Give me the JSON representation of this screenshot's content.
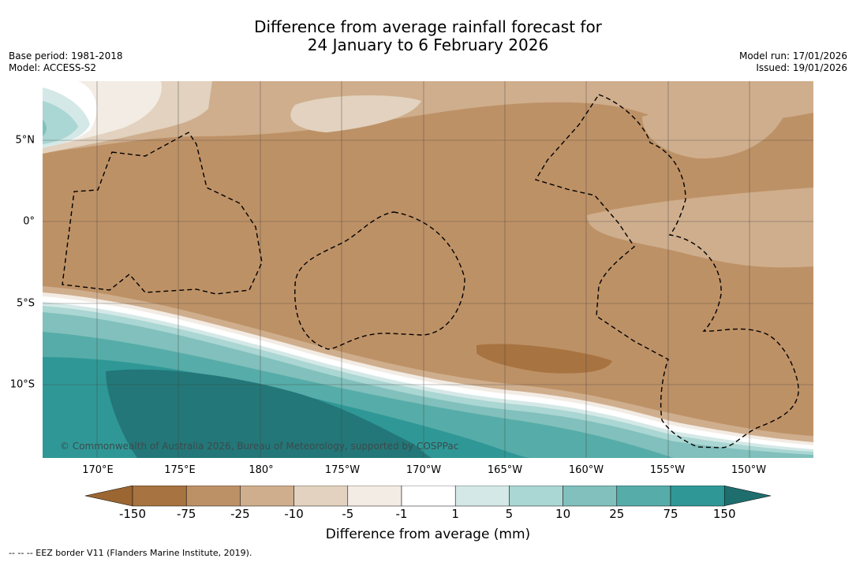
{
  "title": {
    "line1": "Difference from average rainfall forecast for",
    "line2": "24 January to 6 February 2026"
  },
  "meta": {
    "base_period": "Base period: 1981-2018",
    "model": "Model: ACCESS-S2",
    "model_run": "Model run: 17/01/2026",
    "issued": "Issued: 19/01/2026"
  },
  "map": {
    "copyright": "© Commonwealth of Australia 2026, Bureau of Meteorology, supported by COSPPac",
    "lon_labels": [
      "170°E",
      "175°E",
      "180°",
      "175°W",
      "170°W",
      "165°W",
      "160°W",
      "155°W",
      "150°W"
    ],
    "lat_labels": [
      "5°N",
      "0°",
      "5°S",
      "10°S"
    ]
  },
  "colorbar": {
    "title": "Difference from average (mm)",
    "ticks": [
      "-150",
      "-75",
      "-25",
      "-10",
      "-5",
      "-1",
      "1",
      "5",
      "10",
      "25",
      "75",
      "150"
    ],
    "colors": [
      "#a77340",
      "#bd9166",
      "#cfae8d",
      "#e2d2bf",
      "#f3ece4",
      "#ffffff",
      "#d4e9e7",
      "#aad6d3",
      "#81c0bc",
      "#56aca8",
      "#2f9896",
      "#237778"
    ],
    "under_color": "#9b6632",
    "over_color": "#1f6e6e"
  },
  "footnote": "--  --  -- EEZ border V11 (Flanders Marine Institute, 2019)."
}
